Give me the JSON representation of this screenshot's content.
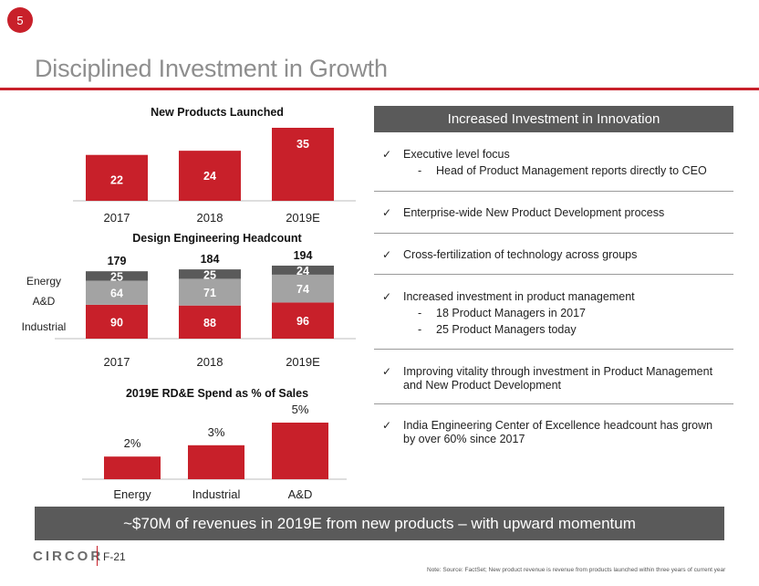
{
  "page_number": "5",
  "title": "Disciplined Investment in Growth",
  "charts": {
    "products": {
      "title": "New Products Launched"
    },
    "headcount": {
      "title": "Design Engineering Headcount"
    },
    "spend": {
      "title": "2019E RD&E Spend as % of Sales"
    }
  },
  "chart_data": [
    {
      "type": "bar",
      "title": "New Products Launched",
      "categories": [
        "2017",
        "2018",
        "2019E"
      ],
      "values": [
        22,
        24,
        35
      ],
      "ylim": [
        0,
        35
      ],
      "colors": [
        "#c8202a"
      ]
    },
    {
      "type": "bar",
      "stacked": true,
      "title": "Design Engineering Headcount",
      "categories": [
        "2017",
        "2018",
        "2019E"
      ],
      "series": [
        {
          "name": "Industrial",
          "values": [
            90,
            88,
            96
          ],
          "color": "#c8202a"
        },
        {
          "name": "A&D",
          "values": [
            64,
            71,
            74
          ],
          "color": "#a3a3a3"
        },
        {
          "name": "Energy",
          "values": [
            25,
            25,
            24
          ],
          "color": "#5a5a5a"
        }
      ],
      "totals": [
        179,
        184,
        194
      ],
      "ylim": [
        0,
        194
      ]
    },
    {
      "type": "bar",
      "title": "2019E RD&E Spend as % of Sales",
      "categories": [
        "Energy",
        "Industrial",
        "A&D"
      ],
      "values": [
        2,
        3,
        5
      ],
      "labels": [
        "2%",
        "3%",
        "5%"
      ],
      "ylim": [
        0,
        5
      ],
      "colors": [
        "#c8202a"
      ]
    }
  ],
  "panel": {
    "header": "Increased Investment in Innovation",
    "bullets": [
      {
        "text": "Executive level focus",
        "subs": [
          "Head of Product Management reports directly to CEO"
        ]
      },
      {
        "text": "Enterprise-wide New Product Development process",
        "subs": []
      },
      {
        "text": "Cross-fertilization of technology across groups",
        "subs": []
      },
      {
        "text": "Increased investment in product management",
        "subs": [
          "18 Product Managers in 2017",
          "25 Product Managers today"
        ]
      },
      {
        "text": "Improving vitality through investment in Product Management and New Product Development",
        "subs": []
      },
      {
        "text": "India Engineering Center of Excellence headcount has grown by over 60% since 2017",
        "subs": []
      }
    ],
    "check_glyph": "✓",
    "dash_glyph": "-"
  },
  "banner": "~$70M of revenues in 2019E from new products – with upward momentum",
  "footer": {
    "logo": "CIRCOR",
    "page_code": "F-21",
    "note": "Note: Source: FactSet; New product revenue is revenue from products launched within three years of current year"
  },
  "colors": {
    "accent": "#c8202a",
    "dark_gray": "#5a5a5a",
    "light_gray": "#a3a3a3",
    "title_gray": "#8e8e8e"
  }
}
